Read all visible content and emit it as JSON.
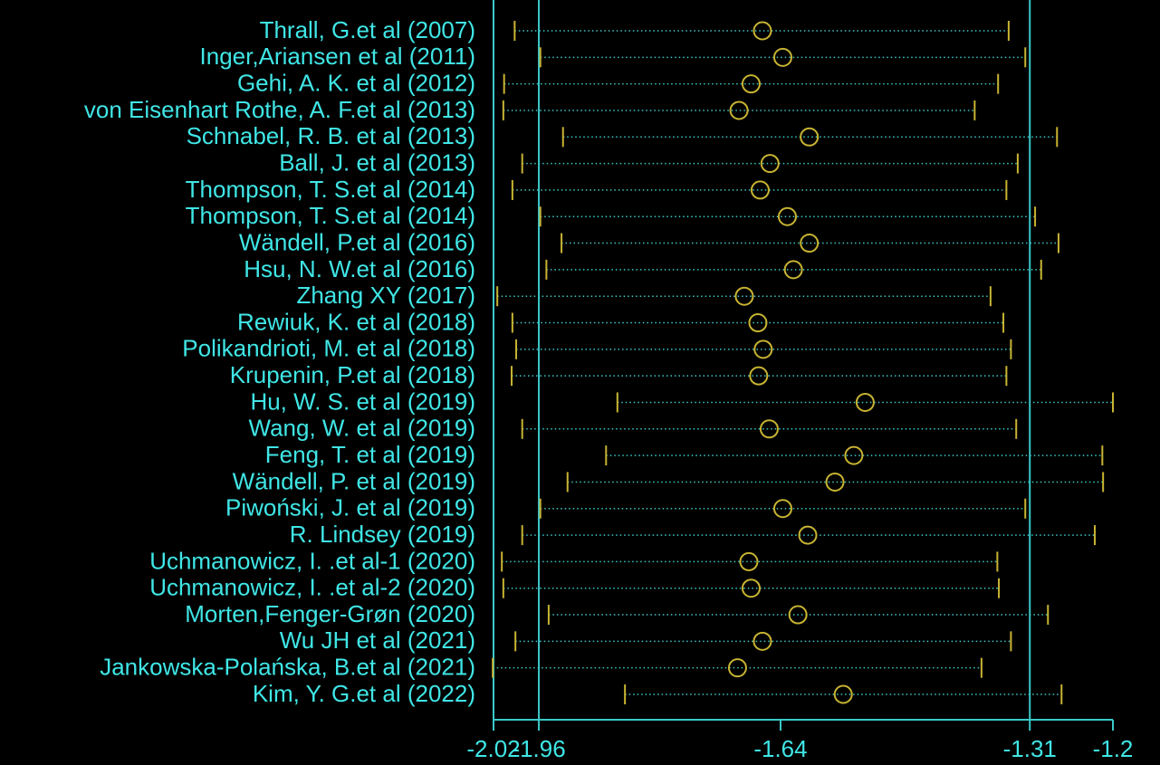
{
  "chart_data": {
    "type": "forest",
    "categories": [
      "Thrall, G.et al (2007)",
      "Inger,Ariansen et al (2011)",
      "Gehi, A. K. et al (2012)",
      "von Eisenhart Rothe, A. F.et al (2013)",
      "Schnabel, R. B. et al (2013)",
      "Ball, J.  et al (2013)",
      "Thompson, T. S.et al (2014)",
      "Thompson, T. S.et al (2014)",
      "Wändell, P.et al (2016)",
      "Hsu, N. W.et al (2016)",
      "Zhang XY (2017)",
      "Rewiuk, K. et al  (2018)",
      "Polikandrioti, M. et al (2018)",
      "Krupenin, P.et al (2018)",
      "Hu, W. S. et al  (2019)",
      "Wang, W. et al (2019)",
      "Feng, T. et al (2019)",
      "Wändell, P. et al (2019)",
      "Piwoński, J.  et al (2019)",
      "R. Lindsey (2019)",
      "Uchmanowicz, I. .et al-1 (2020)",
      "Uchmanowicz, I. .et al-2 (2020)",
      "Morten,Fenger-Grøn (2020)",
      "Wu JH  et al (2021)",
      "Jankowska-Polańska, B.et al (2021)",
      "Kim, Y. G.et al (2022)"
    ],
    "estimates": [
      -1.664,
      -1.637,
      -1.679,
      -1.695,
      -1.602,
      -1.654,
      -1.667,
      -1.631,
      -1.602,
      -1.623,
      -1.688,
      -1.67,
      -1.663,
      -1.669,
      -1.528,
      -1.655,
      -1.543,
      -1.568,
      -1.637,
      -1.604,
      -1.682,
      -1.679,
      -1.617,
      -1.664,
      -1.697,
      -1.557
    ],
    "lower": [
      -1.992,
      -1.958,
      -2.006,
      -2.007,
      -1.928,
      -1.982,
      -1.995,
      -1.958,
      -1.93,
      -1.95,
      -2.015,
      -1.995,
      -1.99,
      -1.996,
      -1.856,
      -1.982,
      -1.871,
      -1.922,
      -1.958,
      -1.982,
      -2.009,
      -2.007,
      -1.947,
      -1.991,
      -2.021,
      -1.846
    ],
    "upper": [
      -1.338,
      -1.316,
      -1.352,
      -1.383,
      -1.274,
      -1.326,
      -1.341,
      -1.303,
      -1.272,
      -1.295,
      -1.362,
      -1.345,
      -1.335,
      -1.341,
      -1.2,
      -1.328,
      -1.214,
      -1.213,
      -1.316,
      -1.224,
      -1.353,
      -1.351,
      -1.286,
      -1.335,
      -1.374,
      -1.268
    ],
    "xlim": [
      -2.02,
      -1.2
    ],
    "xticks": [
      -2.02,
      -1.96,
      -1.64,
      -1.31,
      -1.2
    ],
    "reference_lines": [
      -1.96,
      -1.31
    ],
    "label_color": "#40e6e6",
    "line_color": "#3cc8c8",
    "marker_color": "#c8b432"
  }
}
